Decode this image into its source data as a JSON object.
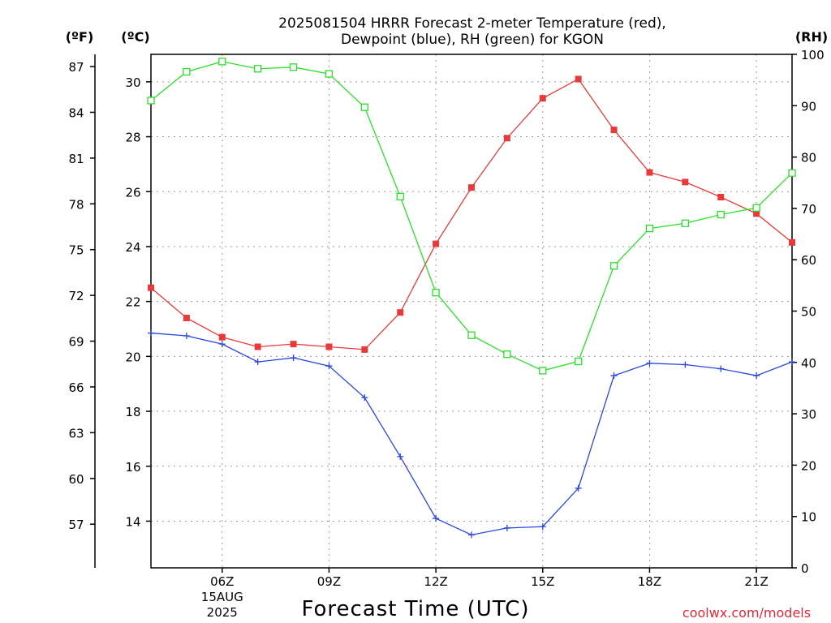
{
  "chart_data": {
    "type": "line",
    "title_lines": [
      "2025081504 HRRR Forecast 2-meter Temperature (red),",
      "Dewpoint (blue), RH (green) for KGON"
    ],
    "xlabel": "Forecast Time (UTC)",
    "credit": "coolwx.com/models",
    "units": {
      "fahrenheit": "(ºF)",
      "celsius": "(ºC)",
      "rh": "(RH)"
    },
    "x_hours": [
      4,
      5,
      6,
      7,
      8,
      9,
      10,
      11,
      12,
      13,
      14,
      15,
      16,
      17,
      18,
      19,
      20,
      21,
      22
    ],
    "x_ticks": [
      {
        "hour": 6,
        "label": "06Z",
        "sub": [
          "15AUG",
          "2025"
        ]
      },
      {
        "hour": 9,
        "label": "09Z",
        "sub": []
      },
      {
        "hour": 12,
        "label": "12Z",
        "sub": []
      },
      {
        "hour": 15,
        "label": "15Z",
        "sub": []
      },
      {
        "hour": 18,
        "label": "18Z",
        "sub": []
      },
      {
        "hour": 21,
        "label": "21Z",
        "sub": []
      }
    ],
    "xlim": [
      4,
      22
    ],
    "ylim_c": [
      12.3,
      31
    ],
    "ylim_rh": [
      0,
      100
    ],
    "yticks_c": [
      "14",
      "16",
      "18",
      "20",
      "22",
      "24",
      "26",
      "28",
      "30"
    ],
    "yticks_f": [
      "57",
      "60",
      "63",
      "66",
      "69",
      "72",
      "75",
      "78",
      "81",
      "84",
      "87"
    ],
    "yticks_rh": [
      "0",
      "10",
      "20",
      "30",
      "40",
      "50",
      "60",
      "70",
      "80",
      "90",
      "100"
    ],
    "series": [
      {
        "name": "Temperature (red)",
        "axis": "celsius",
        "color": "#e83a3a",
        "marker": "filled-square",
        "values": [
          22.5,
          21.4,
          20.7,
          20.35,
          20.45,
          20.35,
          20.25,
          21.6,
          24.1,
          26.15,
          27.95,
          29.4,
          30.1,
          28.25,
          26.7,
          26.35,
          25.8,
          25.2,
          24.15
        ]
      },
      {
        "name": "Dewpoint (blue)",
        "axis": "celsius",
        "color": "#2b46e0",
        "marker": "plus",
        "values": [
          20.85,
          20.75,
          20.45,
          19.8,
          19.95,
          19.65,
          18.5,
          16.35,
          14.1,
          13.5,
          13.75,
          13.8,
          15.2,
          19.3,
          19.75,
          19.7,
          19.55,
          19.3,
          19.8
        ]
      },
      {
        "name": "RH (green)",
        "axis": "rh",
        "color": "#2adf2a",
        "marker": "open-square",
        "values": [
          91,
          96.6,
          98.6,
          97.2,
          97.5,
          96.2,
          89.7,
          72.3,
          53.6,
          45.3,
          41.6,
          38.4,
          40.2,
          58.8,
          66.1,
          67.1,
          68.8,
          70.1,
          76.9
        ]
      }
    ],
    "grid": true
  }
}
